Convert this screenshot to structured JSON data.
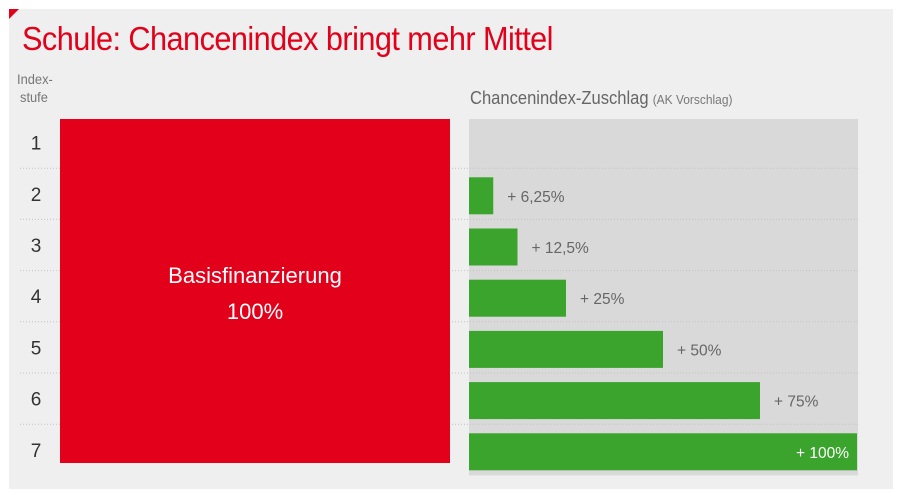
{
  "title": "Schule: Chancenindex bringt mehr Mittel",
  "colors": {
    "accent": "#e2001a",
    "bar": "#3aa42c",
    "panel": "#d9d9d9",
    "background": "#efefef"
  },
  "row_header": {
    "line1": "Index-",
    "line2": "stufe"
  },
  "zuschlag_header": {
    "main": "Chancenindex-Zuschlag",
    "sub": "(AK Vorschlag)"
  },
  "base_block": {
    "label": "Basisfinanzierung",
    "value": "100%"
  },
  "chart_data": {
    "type": "bar",
    "orientation": "horizontal",
    "title": "Schule: Chancenindex bringt mehr Mittel",
    "categories": [
      "1",
      "2",
      "3",
      "4",
      "5",
      "6",
      "7"
    ],
    "series": [
      {
        "name": "Chancenindex-Zuschlag (AK Vorschlag)",
        "values": [
          0,
          6.25,
          12.5,
          25,
          50,
          75,
          100
        ]
      }
    ],
    "data_labels": [
      "",
      "+ 6,25%",
      "+ 12,5%",
      "+ 25%",
      "+ 50%",
      "+ 75%",
      "+ 100%"
    ],
    "xlim": [
      0,
      100
    ],
    "grid": true
  }
}
